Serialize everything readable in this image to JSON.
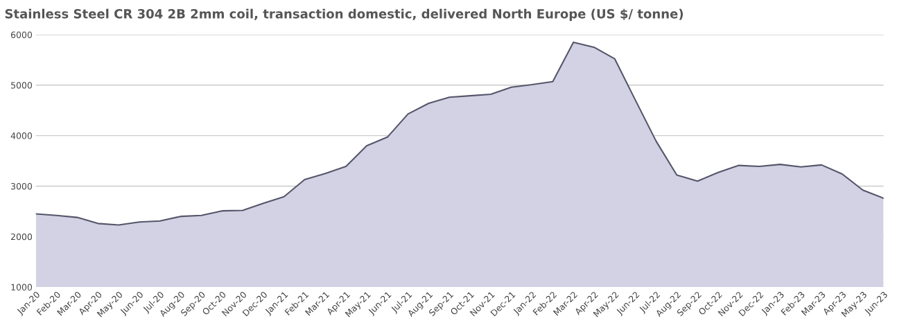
{
  "chart_data": {
    "type": "area",
    "title": "Stainless Steel CR 304 2B 2mm coil, transaction domestic, delivered North Europe (US $/ tonne)",
    "categories": [
      "Jan-20",
      "Feb-20",
      "Mar-20",
      "Apr-20",
      "May-20",
      "Jun-20",
      "Jul-20",
      "Aug-20",
      "Sep-20",
      "Oct-20",
      "Nov-20",
      "Dec-20",
      "Jan-21",
      "Feb-21",
      "Mar-21",
      "Apr-21",
      "May-21",
      "Jun-21",
      "Jul-21",
      "Aug-21",
      "Sep-21",
      "Oct-21",
      "Nov-21",
      "Dec-21",
      "Jan-22",
      "Feb-22",
      "Mar-22",
      "Apr-22",
      "May-22",
      "Jun-22",
      "Jul-22",
      "Aug-22",
      "Sep-22",
      "Oct-22",
      "Nov-22",
      "Dec-22",
      "Jan-23",
      "Feb-23",
      "Mar-23",
      "Apr-23",
      "May-23",
      "Jun-23"
    ],
    "series": [
      {
        "color": "#d2d2e4",
        "values": [
          2450,
          2420,
          2380,
          2260,
          2230,
          2290,
          2310,
          2400,
          2420,
          2510,
          2520,
          2660,
          2790,
          3130,
          3250,
          3390,
          3800,
          3970,
          4430,
          4640,
          4760,
          4790,
          4820,
          4960,
          5010,
          5070,
          5850,
          5750,
          5520,
          4700,
          3890,
          3220,
          3100,
          3270,
          3410,
          3390,
          3430,
          3380,
          3420,
          3240,
          2920,
          2760
        ]
      }
    ],
    "ylim": [
      1000,
      6000
    ],
    "yticks": [
      1000,
      2000,
      3000,
      4000,
      5000,
      6000
    ],
    "grid": "y"
  }
}
